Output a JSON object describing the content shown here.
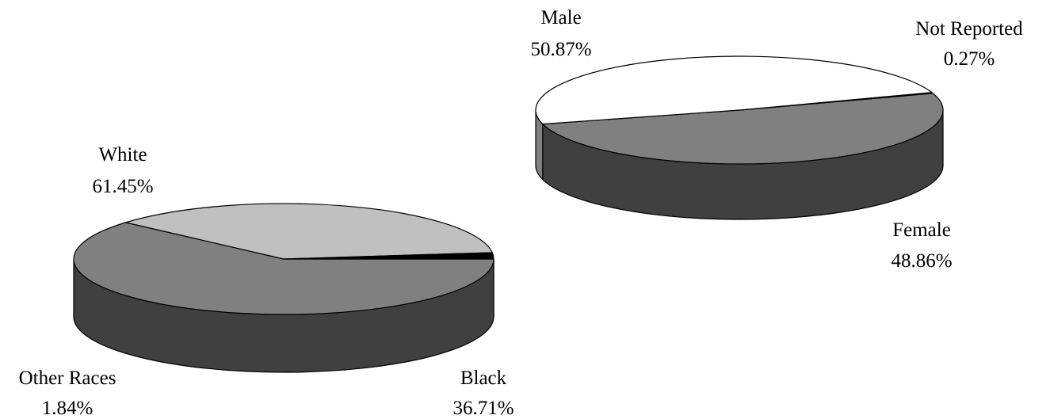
{
  "chart_data": [
    {
      "type": "pie",
      "style": "3d",
      "title": "",
      "slices": [
        {
          "label": "White",
          "value": 61.45,
          "value_text": "61.45%",
          "top_color": "#808080",
          "side_color": "#404040"
        },
        {
          "label": "Black",
          "value": 36.71,
          "value_text": "36.71%",
          "top_color": "#c0c0c0",
          "side_color": "#606060"
        },
        {
          "label": "Other Races",
          "value": 1.84,
          "value_text": "1.84%",
          "top_color": "#000000",
          "side_color": "#000000"
        }
      ]
    },
    {
      "type": "pie",
      "style": "3d",
      "title": "",
      "slices": [
        {
          "label": "Male",
          "value": 50.87,
          "value_text": "50.87%",
          "top_color": "#808080",
          "side_color": "#404040"
        },
        {
          "label": "Not Reported",
          "value": 0.27,
          "value_text": "0.27%",
          "top_color": "#000000",
          "side_color": "#000000"
        },
        {
          "label": "Female",
          "value": 48.86,
          "value_text": "48.86%",
          "top_color": "#ffffff",
          "side_color": "#808080"
        }
      ]
    }
  ]
}
